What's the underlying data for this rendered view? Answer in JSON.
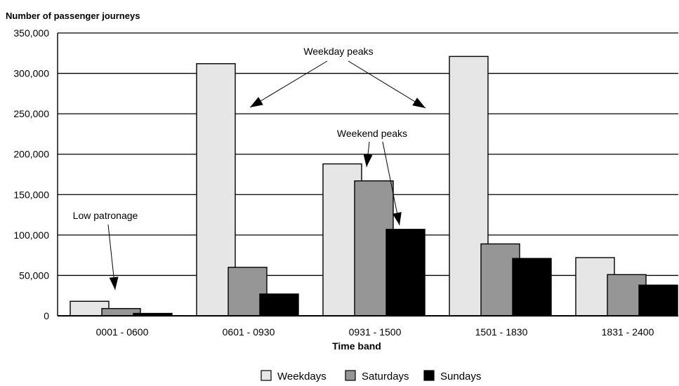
{
  "chart_data": {
    "type": "bar",
    "title": "",
    "ylabel": "Number of passenger journeys",
    "xlabel": "Time band",
    "ylim": [
      0,
      350000
    ],
    "yticks": [
      0,
      50000,
      100000,
      150000,
      200000,
      250000,
      300000,
      350000
    ],
    "ytick_labels": [
      "0",
      "50,000",
      "100,000",
      "150,000",
      "200,000",
      "250,000",
      "300,000",
      "350,000"
    ],
    "grid": "horizontal",
    "legend_position": "bottom",
    "categories": [
      "0001 - 0600",
      "0601 - 0930",
      "0931 - 1500",
      "1501 - 1830",
      "1831 - 2400"
    ],
    "series": [
      {
        "name": "Weekdays",
        "color": "#e6e6e6",
        "values": [
          18000,
          312000,
          188000,
          321000,
          72000
        ]
      },
      {
        "name": "Saturdays",
        "color": "#969696",
        "values": [
          9000,
          60000,
          167000,
          89000,
          51000
        ]
      },
      {
        "name": "Sundays",
        "color": "#000000",
        "values": [
          3000,
          27000,
          107000,
          71000,
          38000
        ]
      }
    ],
    "annotations": [
      {
        "text": "Weekday peaks",
        "targets": [
          {
            "category": 1,
            "value": 255000
          },
          {
            "category": 2,
            "value": 255000
          }
        ]
      },
      {
        "text": "Weekend peaks",
        "targets": [
          {
            "category": 2,
            "series": 1
          },
          {
            "category": 2,
            "series": 2
          }
        ]
      },
      {
        "text": "Low patronage",
        "targets": [
          {
            "category": 0,
            "series": 1
          }
        ]
      }
    ]
  }
}
